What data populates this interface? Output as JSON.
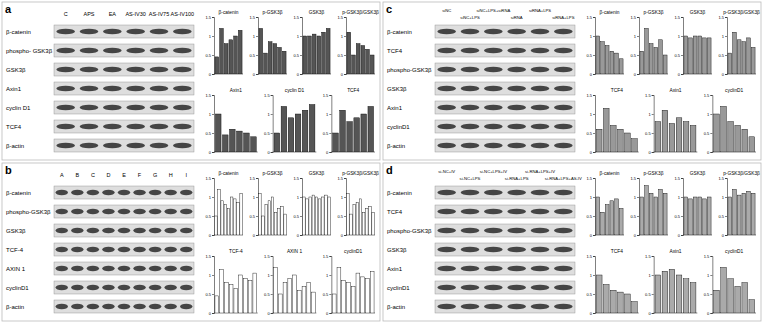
{
  "panels": [
    {
      "label": "a",
      "lanes": [
        "C",
        "APS",
        "EA",
        "AS-IV30",
        "AS-IV75",
        "AS-IV100"
      ],
      "proteins": [
        "β-catenin",
        "phospho- GSK3β",
        "GSK3β",
        "Axin1",
        "cyclin D1",
        "TCF4",
        "β-actin"
      ]
    },
    {
      "label": "b",
      "lanes": [
        "A",
        "B",
        "C",
        "D",
        "E",
        "F",
        "G",
        "H",
        "I"
      ],
      "proteins": [
        "β-catenin",
        "phospho-GSK3β",
        "GSK3β",
        "TCF-4",
        "AXIN 1",
        "cyclinD1",
        "β-actin"
      ]
    },
    {
      "label": "c",
      "lanes": [
        "siNC",
        "siNC+LPS",
        "siNC+LPS+siRNA",
        "siRNA",
        "siRNA+LPS",
        "siRNA+LPS"
      ],
      "proteins": [
        "β-catenin",
        "TCF4",
        "phospho-GSK3β",
        "GSK3β",
        "Axin1",
        "cyclinD1",
        "β-actin"
      ]
    },
    {
      "label": "d",
      "lanes": [
        "si-NC+IV",
        "si-NC+LPS",
        "si-NC+LPS+IV",
        "si-RNA+LPS",
        "si-RNA+LPS+IV",
        "si-RNA+LPS+AS-IV"
      ],
      "proteins": [
        "β-catenin",
        "TCF4",
        "phospho-GSK3β",
        "GSK3β",
        "Axin1",
        "cyclinD1",
        "β-actin"
      ]
    }
  ],
  "chart_data": [
    {
      "type": "bar",
      "title": "β-catenin",
      "values": [
        0.45,
        1.2,
        0.8,
        0.9,
        1.0,
        1.15
      ],
      "color": "#555555",
      "ylim": [
        0,
        1.5
      ],
      "yticks": [
        0,
        0.5,
        1,
        1.5
      ],
      "tick_labels": "y"
    },
    {
      "type": "bar",
      "title": "p-GSK3β",
      "values": [
        1.2,
        0.55,
        0.85,
        0.8,
        0.7,
        0.6
      ],
      "color": "#555555",
      "ylim": [
        0,
        1.5
      ],
      "yticks": [
        0,
        0.5,
        1,
        1.5
      ],
      "tick_labels": "y"
    },
    {
      "type": "bar",
      "title": "GSK3β",
      "values": [
        1.0,
        1.0,
        1.05,
        1.0,
        1.1,
        1.2
      ],
      "color": "#555555",
      "ylim": [
        0,
        1.5
      ],
      "yticks": [
        0,
        0.5,
        1,
        1.5
      ],
      "tick_labels": "y"
    },
    {
      "type": "bar",
      "title": "p-GSK3β/GSK3β",
      "values": [
        1.1,
        0.5,
        0.8,
        0.75,
        0.65,
        0.5
      ],
      "color": "#555555",
      "ylim": [
        0,
        1.5
      ],
      "yticks": [
        0,
        0.5,
        1,
        1.5
      ],
      "tick_labels": "y"
    },
    {
      "type": "bar",
      "title": "Axin1",
      "values": [
        1.0,
        0.45,
        0.6,
        0.55,
        0.5,
        0.4
      ],
      "color": "#555555",
      "ylim": [
        0,
        1.5
      ],
      "yticks": [
        0,
        0.5,
        1,
        1.5
      ],
      "tick_labels": "y"
    },
    {
      "type": "bar",
      "title": "cyclin D1",
      "values": [
        0.5,
        1.2,
        0.9,
        1.0,
        1.1,
        1.25
      ],
      "color": "#555555",
      "ylim": [
        0,
        1.5
      ],
      "yticks": [
        0,
        0.5,
        1,
        1.5
      ],
      "tick_labels": "y"
    },
    {
      "type": "bar",
      "title": "TCF4",
      "values": [
        0.5,
        1.1,
        0.8,
        0.9,
        1.0,
        1.2
      ],
      "color": "#555555",
      "ylim": [
        0,
        1.5
      ],
      "yticks": [
        0,
        0.5,
        1,
        1.5
      ],
      "tick_labels": "y"
    },
    {
      "type": "bar",
      "title": "β-catenin",
      "values": [
        0.5,
        1.2,
        0.9,
        0.8,
        0.7,
        1.0,
        0.95,
        0.85,
        1.1
      ],
      "color": "#ffffff",
      "ylim": [
        0,
        1.5
      ],
      "yticks": [
        0,
        0.5,
        1,
        1.5
      ],
      "tick_labels": "y"
    },
    {
      "type": "bar",
      "title": "p-GSK3β",
      "values": [
        1.1,
        0.5,
        0.8,
        0.9,
        1.0,
        0.6,
        0.7,
        0.75,
        0.55
      ],
      "color": "#ffffff",
      "ylim": [
        0,
        1.5
      ],
      "yticks": [
        0,
        0.5,
        1,
        1.5
      ],
      "tick_labels": "y"
    },
    {
      "type": "bar",
      "title": "GSK3β",
      "values": [
        1.0,
        0.95,
        1.0,
        1.05,
        1.0,
        0.95,
        1.0,
        1.05,
        1.0
      ],
      "color": "#ffffff",
      "ylim": [
        0,
        1.5
      ],
      "yticks": [
        0,
        0.5,
        1,
        1.5
      ],
      "tick_labels": "y"
    },
    {
      "type": "bar",
      "title": "p-GSK3β/GSK3β",
      "values": [
        1.1,
        0.55,
        0.8,
        0.85,
        0.95,
        0.6,
        0.7,
        0.75,
        0.6
      ],
      "color": "#ffffff",
      "ylim": [
        0,
        1.5
      ],
      "yticks": [
        0,
        0.5,
        1,
        1.5
      ],
      "tick_labels": "y"
    },
    {
      "type": "bar",
      "title": "TCF-4",
      "values": [
        0.45,
        1.15,
        0.8,
        0.75,
        0.65,
        1.0,
        0.9,
        0.85,
        1.05
      ],
      "color": "#ffffff",
      "ylim": [
        0,
        1.5
      ],
      "yticks": [
        0,
        0.5,
        1,
        1.5
      ],
      "tick_labels": "y"
    },
    {
      "type": "bar",
      "title": "AXIN 1",
      "values": [
        1.2,
        0.5,
        0.8,
        0.9,
        1.0,
        0.6,
        0.7,
        0.8,
        0.55
      ],
      "color": "#ffffff",
      "ylim": [
        0,
        1.5
      ],
      "yticks": [
        0,
        0.5,
        1,
        1.5
      ],
      "tick_labels": "y"
    },
    {
      "type": "bar",
      "title": "cyclinD1",
      "values": [
        0.5,
        1.2,
        0.85,
        0.8,
        0.7,
        1.05,
        0.95,
        0.9,
        1.1
      ],
      "color": "#ffffff",
      "ylim": [
        0,
        1.5
      ],
      "yticks": [
        0,
        0.5,
        1,
        1.5
      ],
      "tick_labels": "y"
    },
    {
      "type": "bar",
      "title": "β-catenin",
      "values": [
        1.0,
        0.85,
        0.75,
        0.6,
        0.55,
        0.4
      ],
      "color": "#999999",
      "ylim": [
        0,
        1.5
      ],
      "yticks": [
        0,
        0.5,
        1,
        1.5
      ],
      "tick_labels": "y"
    },
    {
      "type": "bar",
      "title": "p-GSK3β",
      "values": [
        0.6,
        1.2,
        0.8,
        0.7,
        0.9,
        0.5
      ],
      "color": "#999999",
      "ylim": [
        0,
        1.5
      ],
      "yticks": [
        0,
        0.5,
        1,
        1.5
      ],
      "tick_labels": "y"
    },
    {
      "type": "bar",
      "title": "GSK3β",
      "values": [
        1.0,
        0.95,
        1.0,
        1.0,
        0.95,
        0.95
      ],
      "color": "#999999",
      "ylim": [
        0,
        1.5
      ],
      "yticks": [
        0,
        0.5,
        1,
        1.5
      ],
      "tick_labels": "y"
    },
    {
      "type": "bar",
      "title": "p-GSK3β/GSK3β",
      "values": [
        0.55,
        1.1,
        0.9,
        0.85,
        0.95,
        0.7
      ],
      "color": "#999999",
      "ylim": [
        0,
        1.5
      ],
      "yticks": [
        0,
        0.5,
        1,
        1.5
      ],
      "tick_labels": "y"
    },
    {
      "type": "bar",
      "title": "TCF4",
      "values": [
        0.6,
        1.15,
        0.7,
        0.6,
        0.5,
        0.35
      ],
      "color": "#999999",
      "ylim": [
        0,
        1.5
      ],
      "yticks": [
        0,
        0.5,
        1,
        1.5
      ],
      "tick_labels": "y"
    },
    {
      "type": "bar",
      "title": "Axin1",
      "values": [
        0.8,
        1.1,
        0.75,
        0.9,
        0.8,
        0.7
      ],
      "color": "#999999",
      "ylim": [
        0,
        1.5
      ],
      "yticks": [
        0,
        0.5,
        1,
        1.5
      ],
      "tick_labels": "y"
    },
    {
      "type": "bar",
      "title": "cyclinD1",
      "values": [
        1.0,
        1.2,
        0.8,
        0.7,
        0.6,
        0.4
      ],
      "color": "#999999",
      "ylim": [
        0,
        1.5
      ],
      "yticks": [
        0,
        0.5,
        1,
        1.5
      ],
      "tick_labels": "y"
    },
    {
      "type": "bar",
      "title": "β-catenin",
      "values": [
        1.0,
        0.6,
        0.8,
        0.9,
        0.95,
        0.7
      ],
      "color": "#aaaaaa",
      "ylim": [
        0,
        1.5
      ],
      "yticks": [
        0,
        0.5,
        1,
        1.5
      ],
      "tick_labels": "y"
    },
    {
      "type": "bar",
      "title": "p-GSK3β",
      "values": [
        1.0,
        1.3,
        1.1,
        1.0,
        1.2,
        1.1
      ],
      "color": "#aaaaaa",
      "ylim": [
        0,
        1.5
      ],
      "yticks": [
        0,
        0.5,
        1,
        1.5
      ],
      "tick_labels": "y"
    },
    {
      "type": "bar",
      "title": "GSK3β",
      "values": [
        1.0,
        0.95,
        1.0,
        1.0,
        0.95,
        1.0
      ],
      "color": "#aaaaaa",
      "ylim": [
        0,
        1.5
      ],
      "yticks": [
        0,
        0.5,
        1,
        1.5
      ],
      "tick_labels": "y"
    },
    {
      "type": "bar",
      "title": "p-GSK3β/GSK3β",
      "values": [
        1.0,
        1.2,
        1.05,
        1.1,
        1.15,
        1.1
      ],
      "color": "#aaaaaa",
      "ylim": [
        0,
        1.5
      ],
      "yticks": [
        0,
        0.5,
        1,
        1.5
      ],
      "tick_labels": "y"
    },
    {
      "type": "bar",
      "title": "TCF4",
      "values": [
        1.0,
        0.75,
        0.6,
        0.55,
        0.5,
        0.3
      ],
      "color": "#aaaaaa",
      "ylim": [
        0,
        1.5
      ],
      "yticks": [
        0,
        0.5,
        1,
        1.5
      ],
      "tick_labels": "y"
    },
    {
      "type": "bar",
      "title": "Axin1",
      "values": [
        1.0,
        1.1,
        1.15,
        1.0,
        0.9,
        0.8
      ],
      "color": "#aaaaaa",
      "ylim": [
        0,
        1.5
      ],
      "yticks": [
        0,
        0.5,
        1,
        1.5
      ],
      "tick_labels": "y"
    },
    {
      "type": "bar",
      "title": "cyclinD1",
      "values": [
        0.6,
        1.2,
        0.9,
        0.7,
        0.8,
        0.35
      ],
      "color": "#aaaaaa",
      "ylim": [
        0,
        1.5
      ],
      "yticks": [
        0,
        0.5,
        1,
        1.5
      ],
      "tick_labels": "y"
    }
  ]
}
